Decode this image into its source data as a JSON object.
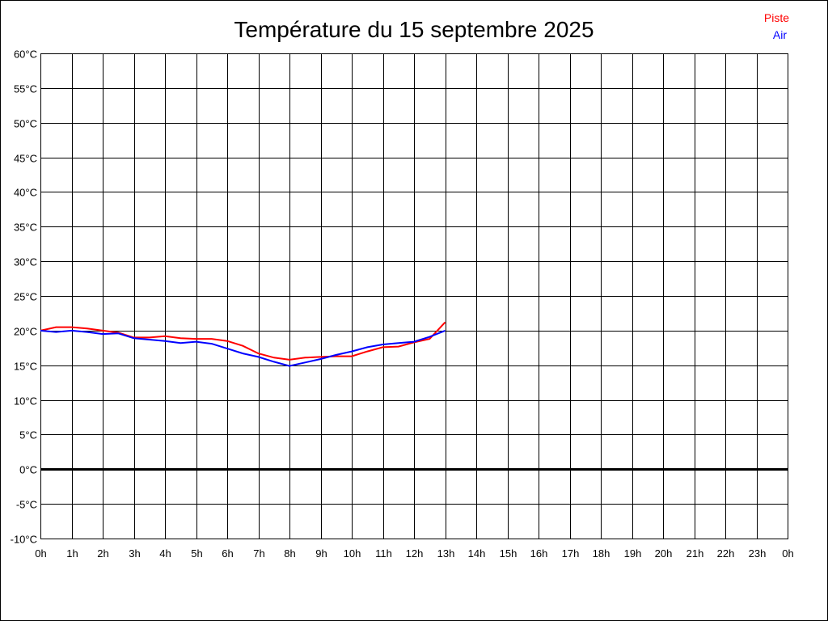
{
  "chart_data": {
    "type": "line",
    "title": "Température du 15 septembre 2025",
    "xlim": [
      0,
      24
    ],
    "ylim": [
      -10,
      60
    ],
    "grid": true,
    "legend_placement": "top-right",
    "x_ticks": [
      "0h",
      "1h",
      "2h",
      "3h",
      "4h",
      "5h",
      "6h",
      "7h",
      "8h",
      "9h",
      "10h",
      "11h",
      "12h",
      "13h",
      "14h",
      "15h",
      "16h",
      "17h",
      "18h",
      "19h",
      "20h",
      "21h",
      "22h",
      "23h",
      "0h"
    ],
    "y_ticks": [
      "60°C",
      "55°C",
      "50°C",
      "45°C",
      "40°C",
      "35°C",
      "30°C",
      "25°C",
      "20°C",
      "15°C",
      "10°C",
      "5°C",
      "0°C",
      "-5°C",
      "-10°C"
    ],
    "x": [
      0,
      0.5,
      1,
      1.5,
      2,
      2.5,
      3,
      3.5,
      4,
      4.5,
      5,
      5.5,
      6,
      6.5,
      7,
      7.5,
      8,
      8.5,
      9,
      9.5,
      10,
      10.5,
      11,
      11.5,
      12,
      12.5,
      13
    ],
    "series": [
      {
        "name": "Piste",
        "color": "#ff0000",
        "values": [
          20.0,
          20.5,
          20.5,
          20.3,
          20.0,
          19.7,
          19.0,
          19.0,
          19.2,
          18.9,
          18.8,
          18.8,
          18.5,
          17.8,
          16.7,
          16.1,
          15.8,
          16.1,
          16.2,
          16.3,
          16.3,
          17.0,
          17.6,
          17.7,
          18.3,
          18.8,
          21.2
        ]
      },
      {
        "name": "Air",
        "color": "#0000ff",
        "values": [
          20.0,
          19.8,
          20.0,
          19.8,
          19.5,
          19.6,
          18.9,
          18.7,
          18.5,
          18.2,
          18.4,
          18.1,
          17.4,
          16.7,
          16.2,
          15.5,
          14.9,
          15.4,
          15.9,
          16.5,
          17.0,
          17.6,
          18.0,
          18.2,
          18.4,
          19.1,
          20.0
        ]
      }
    ]
  }
}
